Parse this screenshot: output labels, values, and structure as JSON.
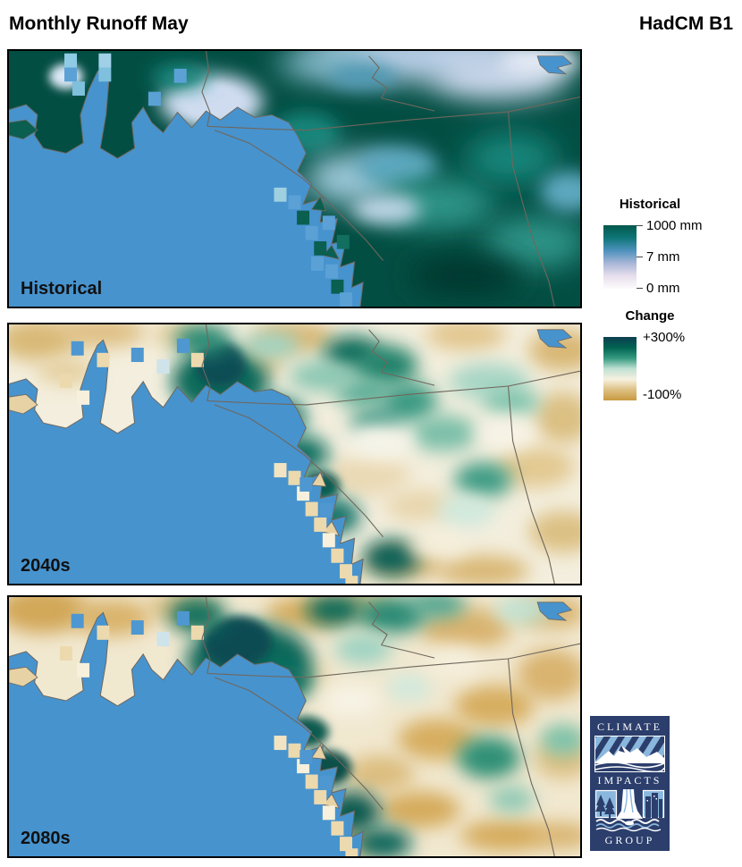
{
  "header": {
    "title_left": "Monthly Runoff May",
    "title_right": "HadCM B1"
  },
  "panels": [
    {
      "label": "Historical",
      "type": "historical"
    },
    {
      "label": "2040s",
      "type": "change"
    },
    {
      "label": "2080s",
      "type": "change"
    }
  ],
  "legends": {
    "historical": {
      "title": "Historical",
      "tick_labels": [
        "1000 mm",
        "7 mm",
        "0 mm"
      ],
      "gradient": [
        "#02584b",
        "#0e7678",
        "#4e92bd",
        "#a9b7d8",
        "#e7dfec",
        "#fdfbfc"
      ]
    },
    "change": {
      "title": "Change",
      "top_label": "+300%",
      "bottom_label": "-100%",
      "gradient": [
        "#0d3e50",
        "#006352",
        "#35997f",
        "#bfe0d2",
        "#f6f1e0",
        "#ddc083",
        "#c89940"
      ]
    }
  },
  "logo": {
    "words": [
      "CLIMATE",
      "IMPACTS",
      "GROUP"
    ]
  },
  "colors": {
    "ocean": "#4793ce",
    "historical_land": "#034e43",
    "change_land": "#f3eedd",
    "change_land_2080": "#f1e8d0",
    "boundary_line": "#6f675c",
    "panel_border": "#000000",
    "label_text": "#111111",
    "logo_navy": "#2b3e6c",
    "logo_light_blue": "#8ab7dd"
  }
}
